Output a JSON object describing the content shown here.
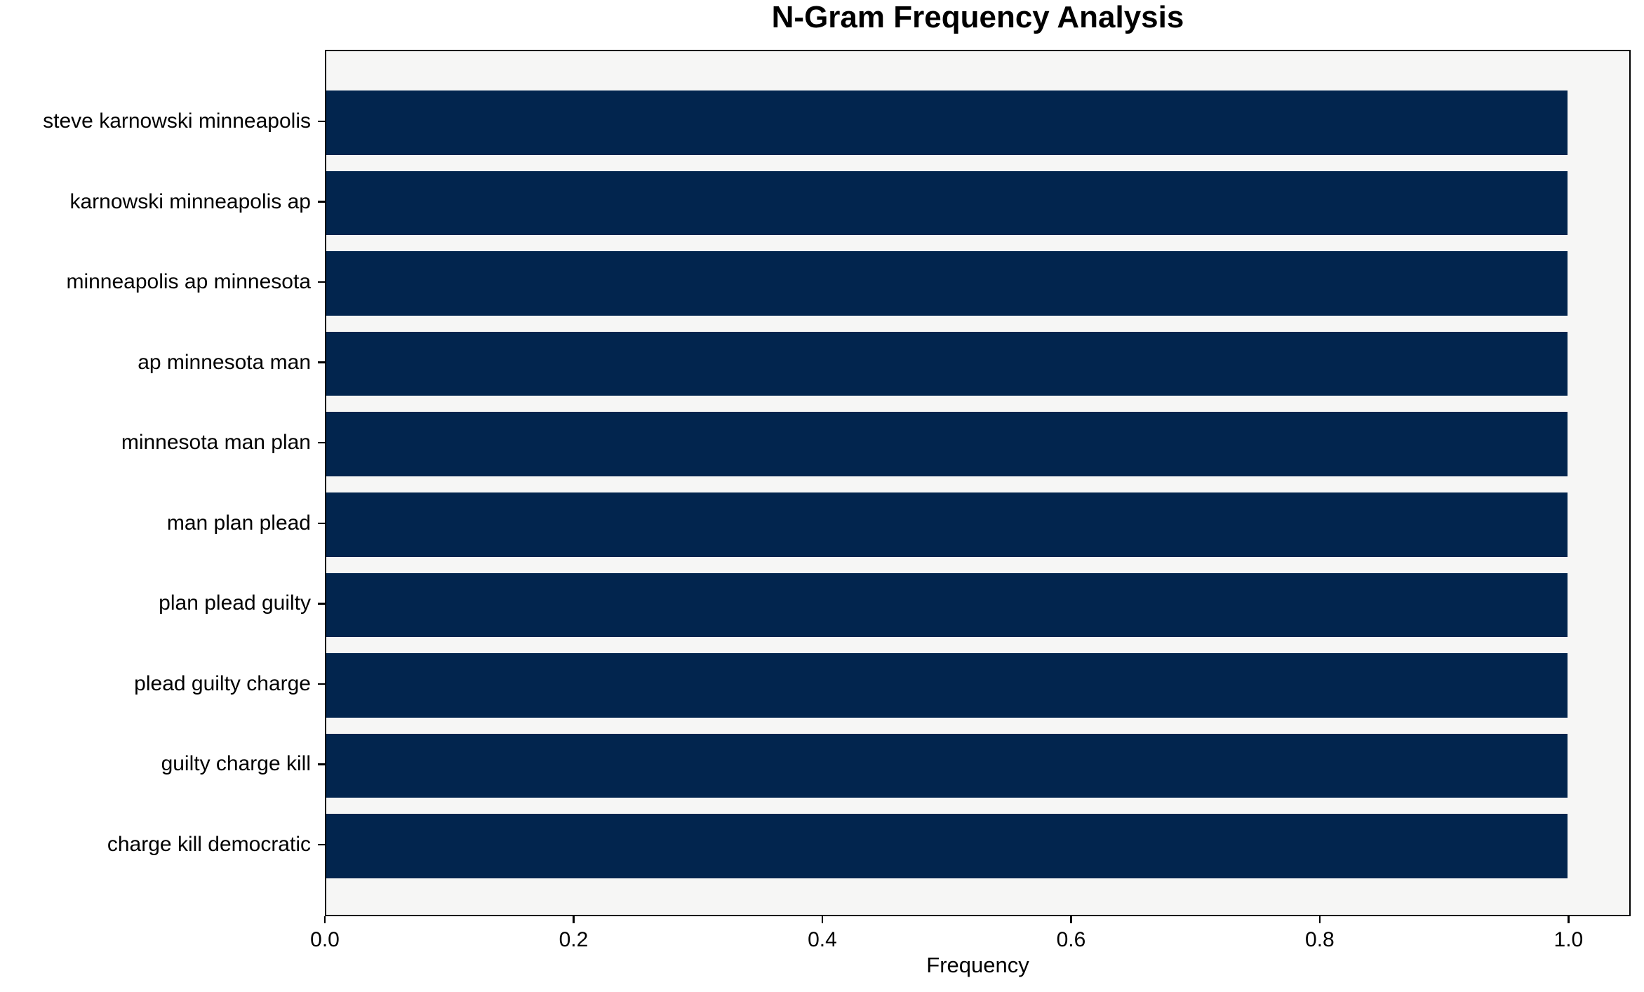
{
  "chart_data": {
    "type": "bar",
    "orientation": "horizontal",
    "title": "N-Gram Frequency Analysis",
    "xlabel": "Frequency",
    "ylabel": "",
    "categories": [
      "steve karnowski minneapolis",
      "karnowski minneapolis ap",
      "minneapolis ap minnesota",
      "ap minnesota man",
      "minnesota man plan",
      "man plan plead",
      "plan plead guilty",
      "plead guilty charge",
      "guilty charge kill",
      "charge kill democratic"
    ],
    "values": [
      1.0,
      1.0,
      1.0,
      1.0,
      1.0,
      1.0,
      1.0,
      1.0,
      1.0,
      1.0
    ],
    "x_ticks": [
      {
        "value": 0.0,
        "label": "0.0"
      },
      {
        "value": 0.2,
        "label": "0.2"
      },
      {
        "value": 0.4,
        "label": "0.4"
      },
      {
        "value": 0.6,
        "label": "0.6"
      },
      {
        "value": 0.8,
        "label": "0.8"
      },
      {
        "value": 1.0,
        "label": "1.0"
      }
    ],
    "xlim": [
      0.0,
      1.05
    ],
    "grid": false,
    "legend": "none",
    "colors": {
      "bar": "#02254e",
      "plot_background": "#f6f6f5",
      "figure_background": "#ffffff",
      "axis": "#000000",
      "text": "#000000"
    }
  }
}
